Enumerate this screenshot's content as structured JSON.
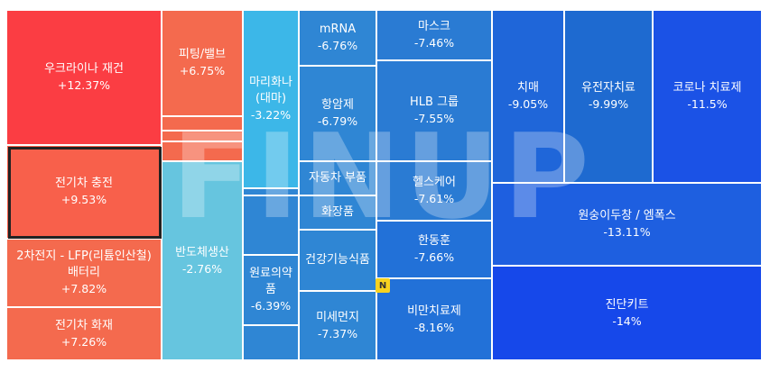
{
  "watermark": "FINUP",
  "badge": "N",
  "tiles": [
    {
      "name": "우크라이나 재건",
      "pct": "+12.37%"
    },
    {
      "name": "전기차 충전",
      "pct": "+9.53%"
    },
    {
      "name": "2차전지 - LFP(리튬인산철) 배터리",
      "pct": "+7.82%"
    },
    {
      "name": "전기차 화재",
      "pct": "+7.26%"
    },
    {
      "name": "피팅/밸브",
      "pct": "+6.75%"
    },
    {
      "name": "반도체생산",
      "pct": "-2.76%"
    },
    {
      "name": "마리화나(대마)",
      "pct": "-3.22%"
    },
    {
      "name": "원료의약품",
      "pct": "-6.39%"
    },
    {
      "name": "mRNA",
      "pct": "-6.76%"
    },
    {
      "name": "항암제",
      "pct": "-6.79%"
    },
    {
      "name": "자동차 부품",
      "pct": ""
    },
    {
      "name": "화장품",
      "pct": ""
    },
    {
      "name": "건강기능식품",
      "pct": ""
    },
    {
      "name": "미세먼지",
      "pct": "-7.37%"
    },
    {
      "name": "마스크",
      "pct": "-7.46%"
    },
    {
      "name": "HLB 그룹",
      "pct": "-7.55%"
    },
    {
      "name": "헬스케어",
      "pct": "-7.61%"
    },
    {
      "name": "한동훈",
      "pct": "-7.66%"
    },
    {
      "name": "비만치료제",
      "pct": "-8.16%"
    },
    {
      "name": "치매",
      "pct": "-9.05%"
    },
    {
      "name": "유전자치료",
      "pct": "-9.99%"
    },
    {
      "name": "코로나 치료제",
      "pct": "-11.5%"
    },
    {
      "name": "원숭이두창 / 엠폭스",
      "pct": "-13.11%"
    },
    {
      "name": "진단키트",
      "pct": "-14%"
    }
  ]
}
